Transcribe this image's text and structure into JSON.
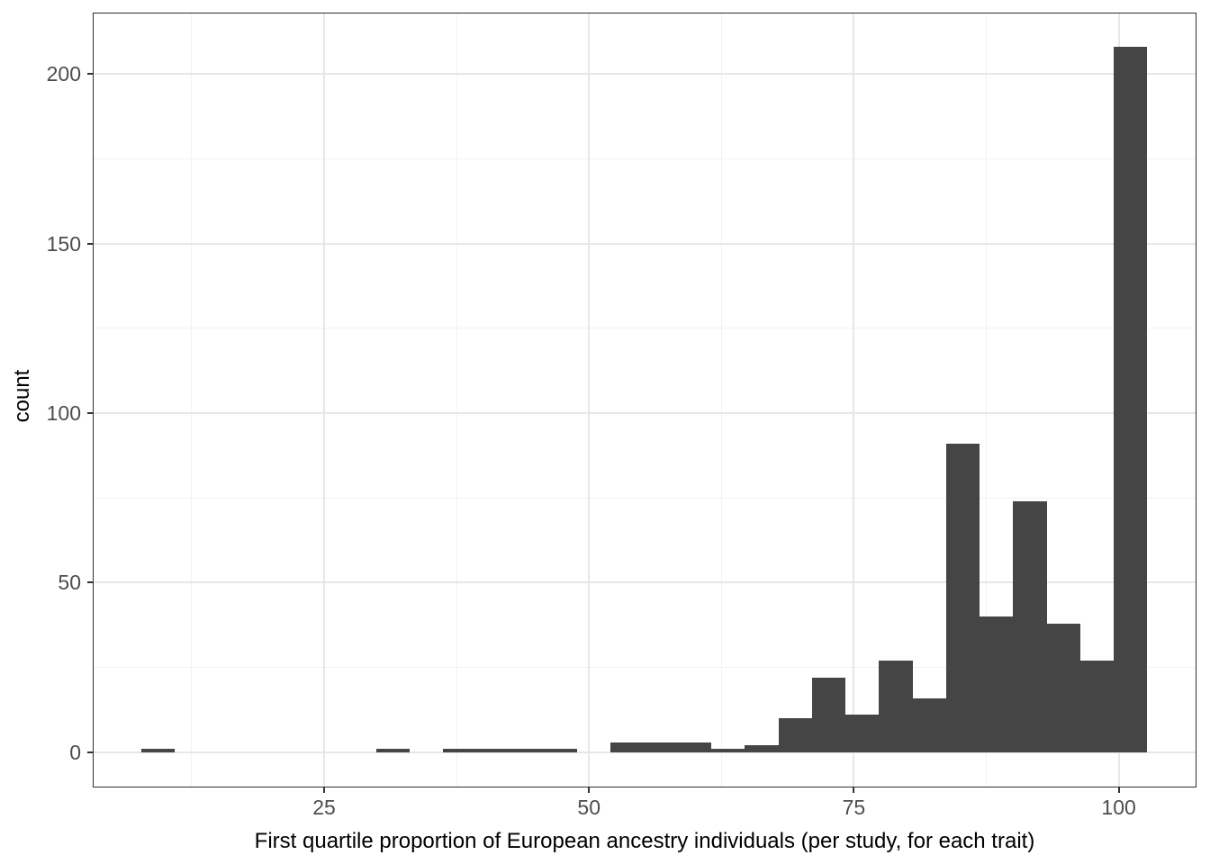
{
  "chart_data": {
    "type": "bar",
    "subtype": "histogram",
    "title": "",
    "xlabel": "First quartile proportion of European ancestry individuals (per study, for each trait)",
    "ylabel": "count",
    "bin_start": 7.75,
    "bin_width": 3.165,
    "counts": [
      1,
      0,
      0,
      0,
      0,
      0,
      0,
      1,
      0,
      1,
      1,
      1,
      1,
      0,
      3,
      3,
      3,
      1,
      2,
      10,
      22,
      11,
      27,
      16,
      91,
      40,
      74,
      38,
      27,
      208
    ],
    "xlim": [
      3.16,
      107.34
    ],
    "ylim": [
      -10.4,
      218.1
    ],
    "x_major_ticks": [
      25,
      50,
      75,
      100
    ],
    "x_minor_gridlines": [
      12.5,
      37.5,
      62.5,
      87.5
    ],
    "y_major_ticks": [
      0,
      50,
      100,
      150,
      200
    ],
    "y_minor_gridlines": [
      25,
      75,
      125,
      175
    ],
    "grid": "on",
    "legend": "none",
    "colors": {
      "bar": "#454545",
      "grid_major": "#e7e7e7",
      "grid_minor": "#f2f2f2",
      "panel_border": "#2e2e2e",
      "tick_mark": "#333333",
      "tick_label": "#4d4d4d",
      "axis_title": "#000000",
      "background": "#ffffff"
    }
  }
}
